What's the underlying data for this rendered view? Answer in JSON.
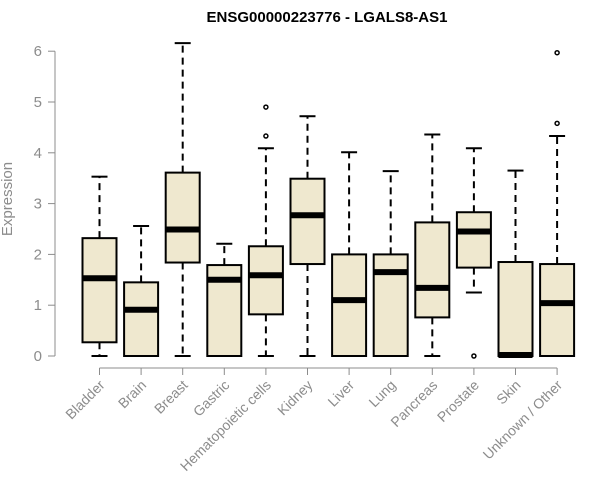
{
  "chart_data": {
    "type": "boxplot",
    "title": "ENSG00000223776 - LGALS8-AS1",
    "xlabel": "",
    "ylabel": "Expression",
    "ylim": [
      0,
      6.3
    ],
    "yticks": [
      0,
      1,
      2,
      3,
      4,
      5,
      6
    ],
    "grid": false,
    "categories": [
      "Bladder",
      "Brain",
      "Breast",
      "Gastric",
      "Hematopoietic cells",
      "Kidney",
      "Liver",
      "Lung",
      "Pancreas",
      "Prostate",
      "Skin",
      "Unknown / Other"
    ],
    "boxes": [
      {
        "min": 0.0,
        "q1": 0.27,
        "median": 1.53,
        "q3": 2.32,
        "max": 3.53,
        "outliers": []
      },
      {
        "min": 0.0,
        "q1": 0.0,
        "median": 0.91,
        "q3": 1.45,
        "max": 2.56,
        "outliers": []
      },
      {
        "min": 0.0,
        "q1": 1.84,
        "median": 2.49,
        "q3": 3.61,
        "max": 6.16,
        "outliers": []
      },
      {
        "min": 0.0,
        "q1": 0.0,
        "median": 1.5,
        "q3": 1.79,
        "max": 2.21,
        "outliers": []
      },
      {
        "min": 0.0,
        "q1": 0.82,
        "median": 1.59,
        "q3": 2.16,
        "max": 4.09,
        "outliers": [
          4.33,
          4.9
        ]
      },
      {
        "min": 0.0,
        "q1": 1.81,
        "median": 2.77,
        "q3": 3.49,
        "max": 4.72,
        "outliers": []
      },
      {
        "min": 0.0,
        "q1": 0.0,
        "median": 1.1,
        "q3": 2.0,
        "max": 4.01,
        "outliers": []
      },
      {
        "min": 0.0,
        "q1": 0.0,
        "median": 1.65,
        "q3": 2.0,
        "max": 3.64,
        "outliers": []
      },
      {
        "min": 0.0,
        "q1": 0.76,
        "median": 1.34,
        "q3": 2.63,
        "max": 4.36,
        "outliers": []
      },
      {
        "min": 1.25,
        "q1": 1.74,
        "median": 2.45,
        "q3": 2.83,
        "max": 4.09,
        "outliers": [
          0.0
        ]
      },
      {
        "min": 0.0,
        "q1": 0.0,
        "median": 0.02,
        "q3": 1.85,
        "max": 3.65,
        "outliers": []
      },
      {
        "min": 0.0,
        "q1": 0.0,
        "median": 1.04,
        "q3": 1.81,
        "max": 4.33,
        "outliers": [
          4.58,
          5.97
        ]
      }
    ],
    "colors": {
      "box_fill": "#efe8cf",
      "box_stroke": "#000000",
      "axis": "#8c8c8c",
      "text": "#8c8c8c",
      "title": "#000000"
    }
  }
}
